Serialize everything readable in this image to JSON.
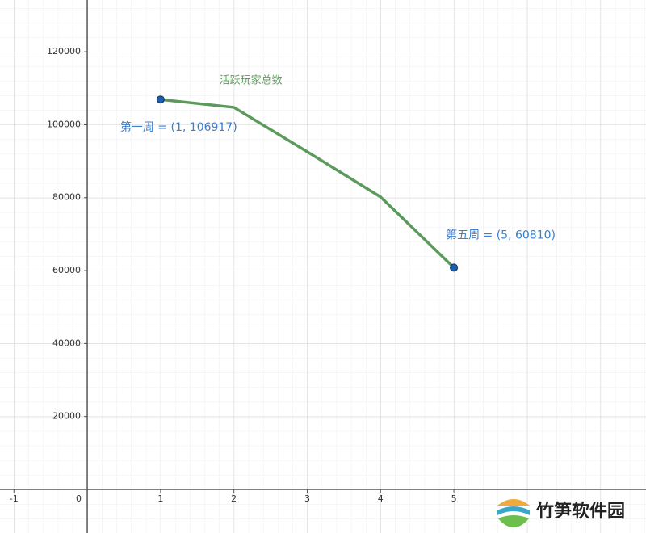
{
  "chart_data": {
    "type": "line",
    "series": [
      {
        "name": "活跃玩家总数",
        "color": "#5b9a5b",
        "x": [
          1,
          2,
          3,
          4,
          5
        ],
        "values": [
          106917,
          104760,
          92600,
          80200,
          60810
        ]
      }
    ],
    "labeled_points": [
      {
        "label": "第一周 = (1, 106917)",
        "x": 1,
        "y": 106917
      },
      {
        "label": "第五周 = (5, 60810)",
        "x": 5,
        "y": 60810
      }
    ],
    "point_color": "#1c5fb0",
    "label_color": "#3b7fd0",
    "xlim": [
      -1.19,
      7.62
    ],
    "ylim": [
      -11960,
      134200
    ],
    "xticks": [
      -1,
      0,
      1,
      2,
      3,
      4,
      5
    ],
    "yticks": [
      20000,
      40000,
      60000,
      80000,
      100000,
      120000
    ],
    "grid": true
  },
  "watermark": "竹笋软件园"
}
